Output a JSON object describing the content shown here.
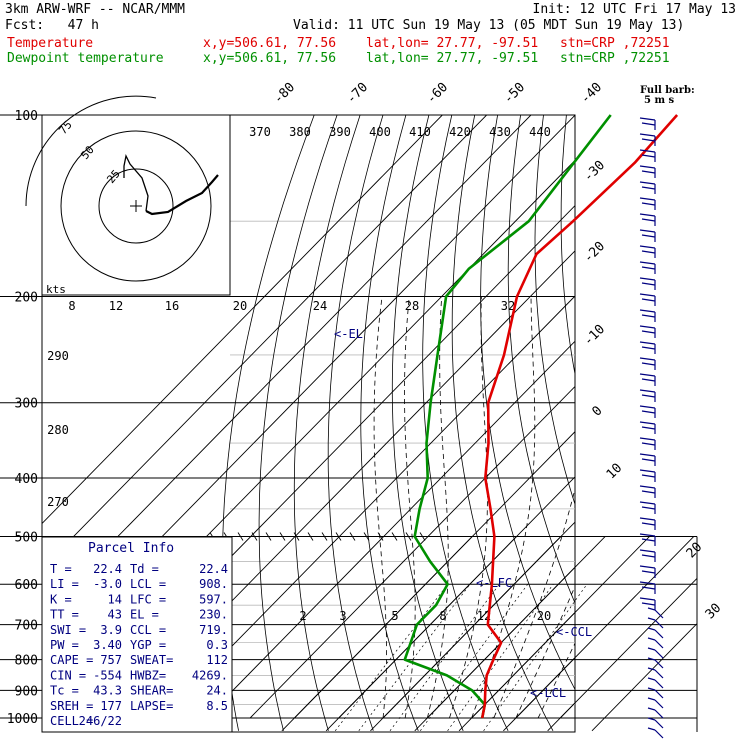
{
  "header": {
    "line1_left": "3km ARW-WRF -- NCAR/MMM",
    "line1_right": "Init: 12 UTC Fri 17 May 13",
    "line2_left": "Fcst:   47 h",
    "line2_right": "Valid: 11 UTC Sun 19 May 13 (05 MDT Sun 19 May 13)",
    "line3_label": "Temperature",
    "line4_label": "Dewpoint temperature",
    "xy": "x,y=506.61, 77.56",
    "latlon": "lat,lon= 27.77, -97.51",
    "station": "stn=CRP ,72251",
    "barb_legend": "Full barb:",
    "barb_legend_units": "5 m s",
    "colors": {
      "temperature": "#e00000",
      "dewpoint": "#009000",
      "wind": "#000080",
      "grid": "#000000"
    }
  },
  "chart_data": {
    "type": "line",
    "pressure_labels": [
      "100",
      "200",
      "300",
      "400",
      "500",
      "600",
      "700",
      "800",
      "900",
      "1000"
    ],
    "pressure_levels": [
      100,
      200,
      300,
      400,
      500,
      600,
      700,
      800,
      900,
      1000
    ],
    "temp_labels": [
      "-80",
      "-70",
      "-60",
      "-50",
      "-40",
      "-30",
      "-20",
      "-10",
      "0",
      "10",
      "20",
      "30",
      "40"
    ],
    "theta_labels": [
      "370",
      "380",
      "390",
      "400",
      "410",
      "420",
      "430",
      "440"
    ],
    "mixing_top_labels": [
      "8",
      "12",
      "16",
      "20",
      "24",
      "28",
      "32"
    ],
    "mixing_bottom_labels": [
      "2",
      "3",
      "5",
      "8",
      "12",
      "20"
    ],
    "dry_adiabat_labels": [
      "290",
      "280",
      "270"
    ],
    "el_marker": "<-EL",
    "lfc_marker": "<-LFC",
    "ccl_marker": "<-CCL",
    "lcl_marker": "<-LCL",
    "temperature_series": {
      "name": "Temperature",
      "points": [
        [
          100,
          -67
        ],
        [
          120,
          -66
        ],
        [
          150,
          -67
        ],
        [
          170,
          -68
        ],
        [
          200,
          -63
        ],
        [
          250,
          -53
        ],
        [
          300,
          -46
        ],
        [
          350,
          -37
        ],
        [
          400,
          -30
        ],
        [
          450,
          -22
        ],
        [
          500,
          -15
        ],
        [
          600,
          -5
        ],
        [
          700,
          3
        ],
        [
          750,
          10
        ],
        [
          800,
          12
        ],
        [
          850,
          14
        ],
        [
          900,
          17
        ],
        [
          950,
          20
        ],
        [
          1000,
          22.4
        ]
      ]
    },
    "dewpoint_series": {
      "name": "Dewpoint temperature",
      "points": [
        [
          100,
          -82
        ],
        [
          150,
          -77
        ],
        [
          180,
          -80
        ],
        [
          200,
          -79
        ],
        [
          250,
          -68
        ],
        [
          300,
          -59
        ],
        [
          350,
          -51
        ],
        [
          400,
          -43
        ],
        [
          450,
          -38
        ],
        [
          500,
          -33
        ],
        [
          550,
          -24
        ],
        [
          600,
          -15
        ],
        [
          650,
          -13
        ],
        [
          700,
          -13
        ],
        [
          800,
          -8
        ],
        [
          850,
          5
        ],
        [
          900,
          14
        ],
        [
          950,
          20
        ],
        [
          1000,
          22.4
        ]
      ]
    },
    "hodograph": {
      "ring_labels": [
        "25",
        "50",
        "75"
      ],
      "units_label": "kts"
    },
    "parcel_info": {
      "title": "Parcel Info",
      "rows": [
        [
          "T  =",
          "22.4",
          "Td =",
          "22.4"
        ],
        [
          "LI =",
          "-3.0",
          "LCL =",
          "908."
        ],
        [
          "K  =",
          "14",
          "LFC =",
          "597."
        ],
        [
          "TT =",
          "43",
          "EL  =",
          "230."
        ],
        [
          "SWI =",
          "3.9",
          "CCL =",
          "719."
        ],
        [
          "PW =",
          "3.40",
          "YGP =",
          "0.3"
        ],
        [
          "CAPE =",
          "757",
          "SWEAT=",
          "112"
        ],
        [
          "CIN =",
          "-554",
          "HWBZ=",
          "4269."
        ],
        [
          "Tc =",
          "43.3",
          "SHEAR=",
          "24."
        ],
        [
          "SREH =",
          "177",
          "LAPSE=",
          "8.5"
        ],
        [
          "CELL =",
          "246/22",
          "",
          ""
        ]
      ]
    }
  }
}
